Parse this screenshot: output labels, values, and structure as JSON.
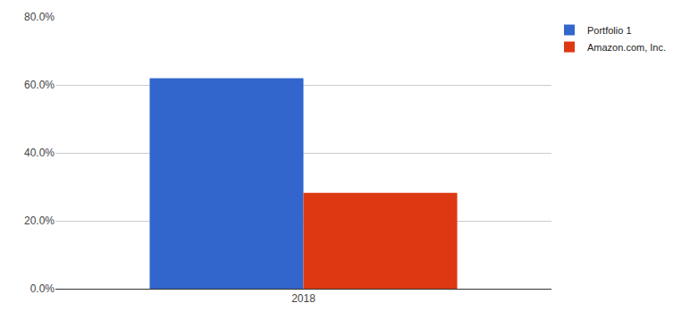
{
  "chart_data": {
    "type": "bar",
    "categories": [
      "2018"
    ],
    "series": [
      {
        "name": "Portfolio 1",
        "color": "#3366cc",
        "values": [
          62.0
        ]
      },
      {
        "name": "Amazon.com, Inc.",
        "color": "#dc3912",
        "values": [
          28.2
        ]
      }
    ],
    "ylim": [
      0,
      80
    ],
    "yticks": [
      {
        "value": 0,
        "label": "0.0%"
      },
      {
        "value": 20,
        "label": "20.0%"
      },
      {
        "value": 40,
        "label": "40.0%"
      },
      {
        "value": 60,
        "label": "60.0%"
      },
      {
        "value": 80,
        "label": "80.0%"
      }
    ],
    "grid": true,
    "legend": "top right"
  }
}
